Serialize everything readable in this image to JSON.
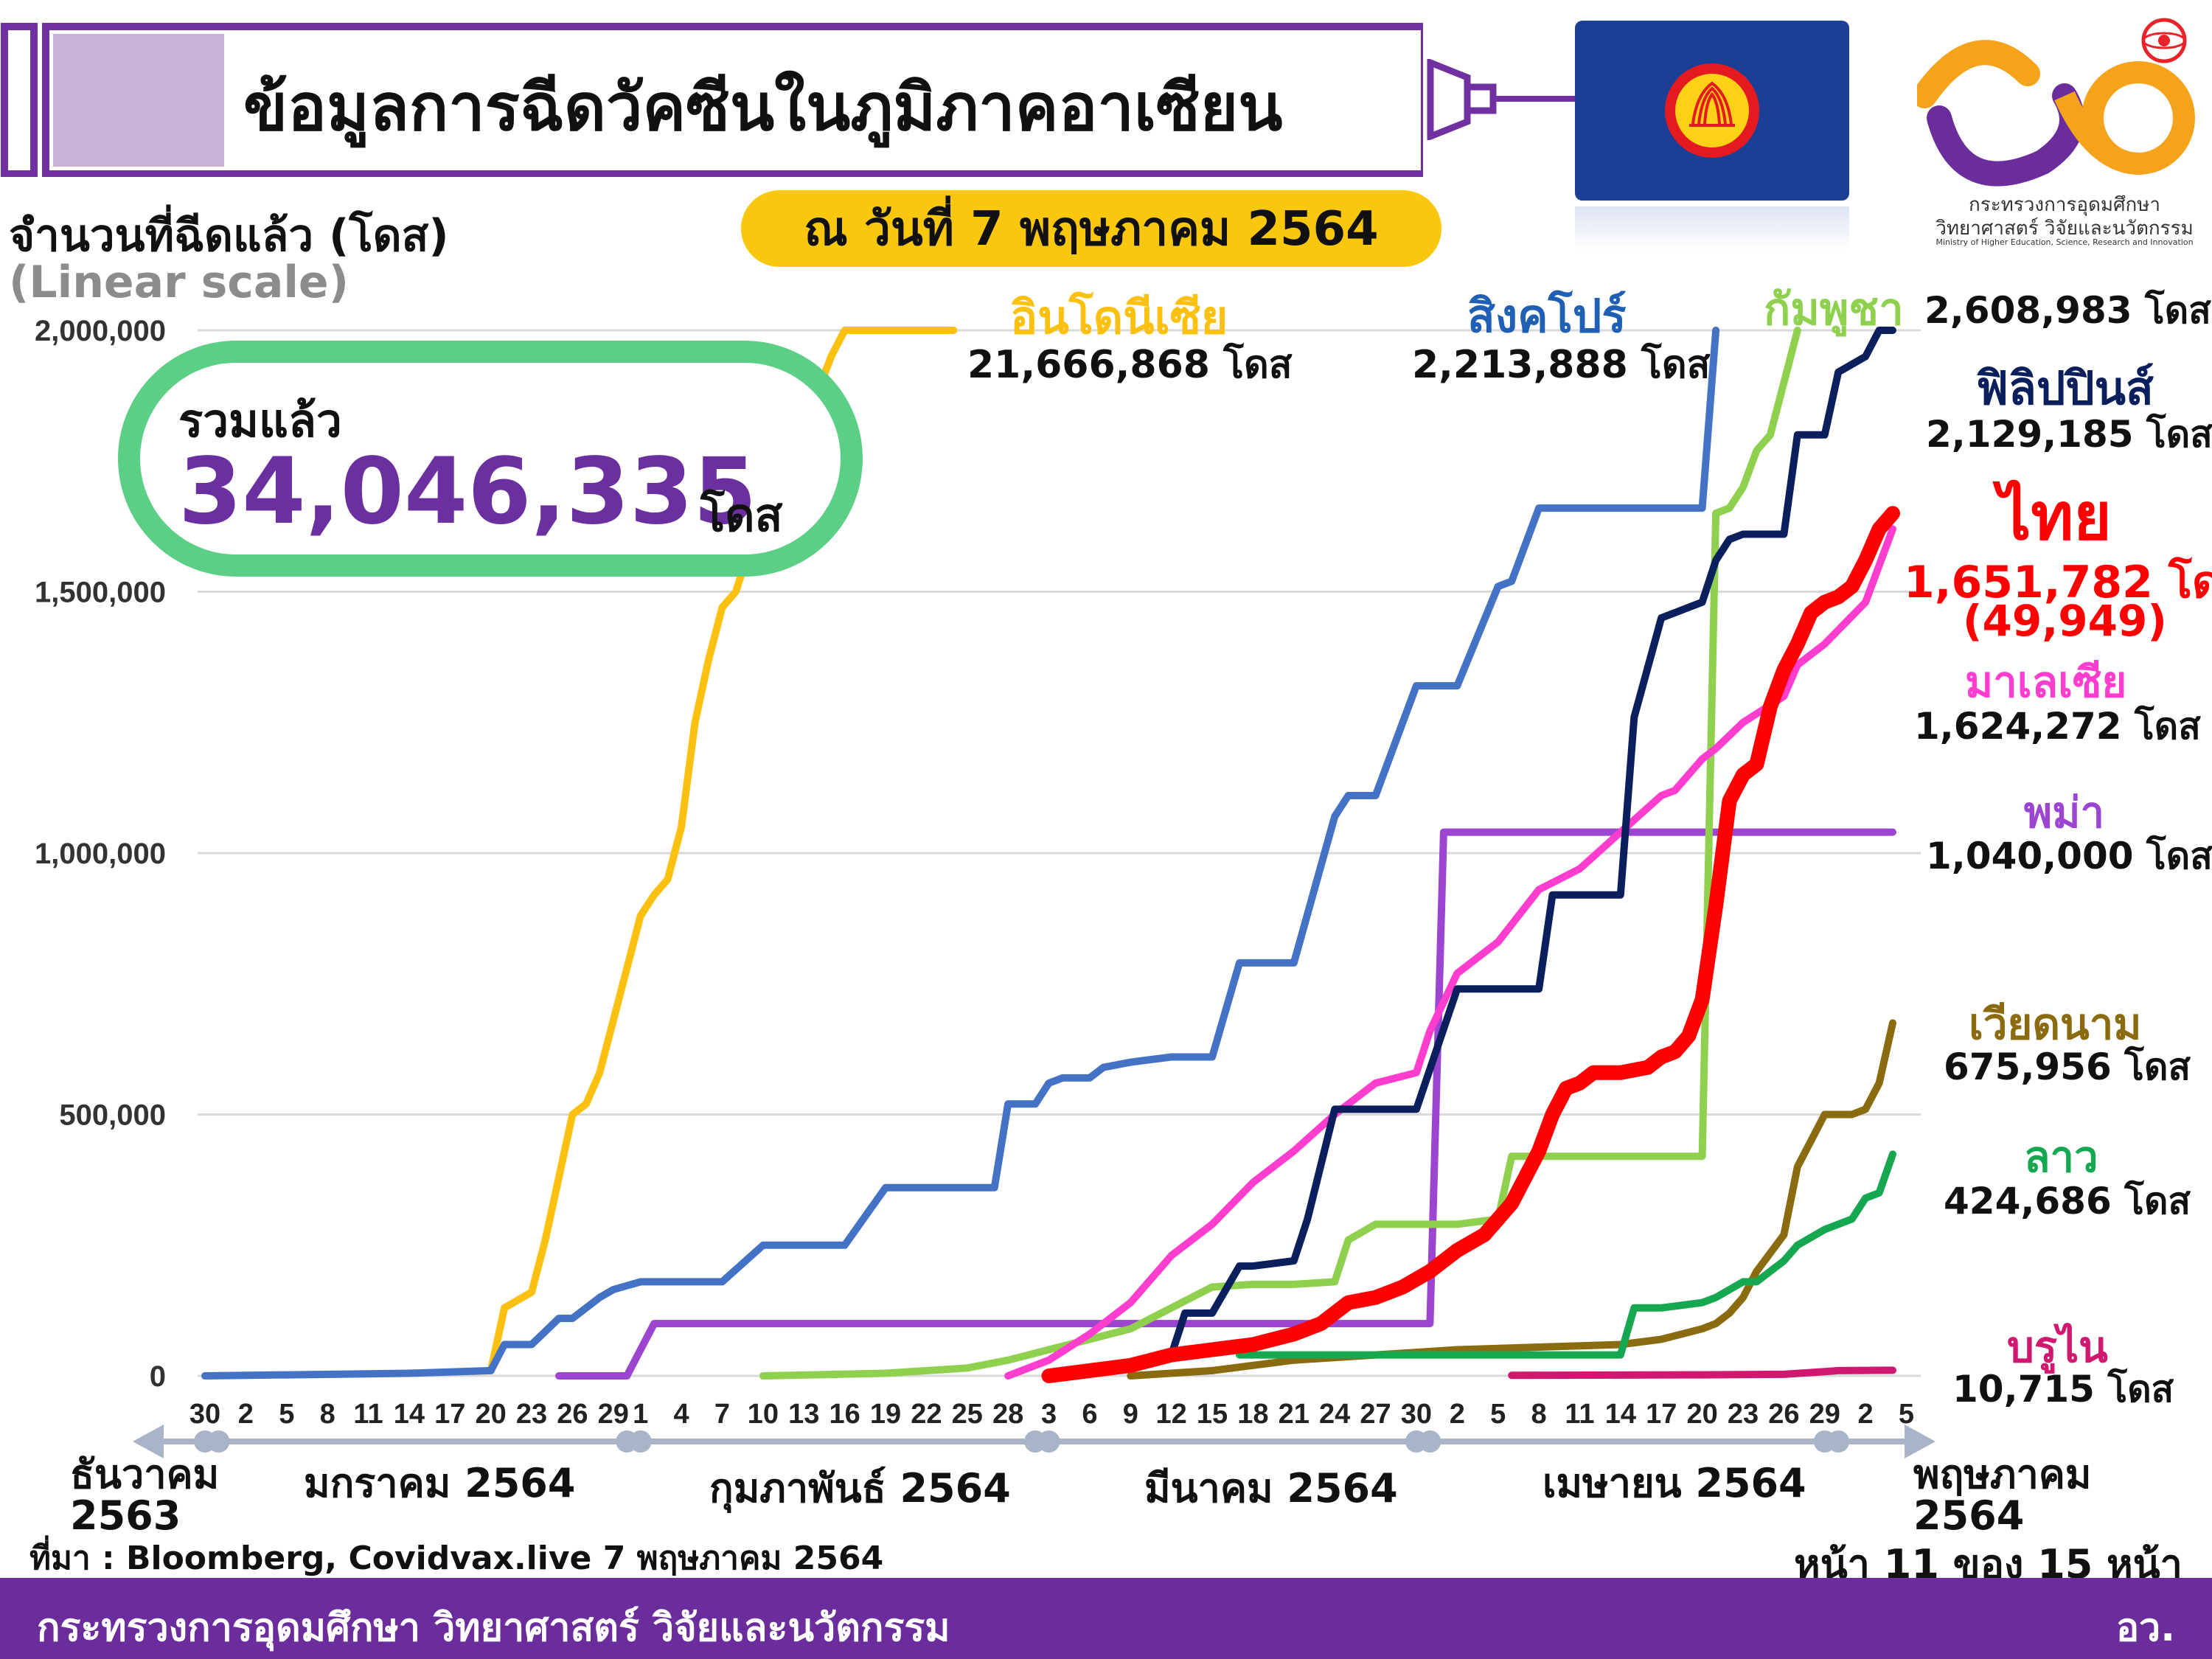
{
  "header": {
    "title": "ข้อมูลการฉีดวัคซีนในภูมิภาคอาเซียน",
    "date": "ณ วันที่ 7 พฤษภาคม 2564"
  },
  "total": {
    "label": "รวมแล้ว",
    "value": "34,046,335",
    "unit": "โดส"
  },
  "logo": {
    "ministry_th_1": "กระทรวงการอุดมศึกษา",
    "ministry_th_2": "วิทยาศาสตร์ วิจัยและนวัตกรรม",
    "ministry_en": "Ministry of Higher Education, Science, Research and Innovation"
  },
  "colors": {
    "indonesia": "#fcc010",
    "singapore": "#4472c4",
    "cambodia": "#8fd14f",
    "philippines": "#0b1f5c",
    "thailand": "#ff0000",
    "malaysia": "#ff3dcf",
    "myanmar": "#9b45d1",
    "vietnam": "#8b6b0f",
    "laos": "#16a850",
    "brunei": "#d01870",
    "grid": "#d9d9d9",
    "axis_arrow": "#aab4c8"
  },
  "source": "ที่มา : Bloomberg, Covidvax.live 7 พฤษภาคม 2564",
  "page_label": "หน้า 11 ของ 15 หน้า",
  "footer": {
    "left": "กระทรวงการอุดมศึกษา วิทยาศาสตร์ วิจัยและนวัตกรรม",
    "right": "อว."
  },
  "chart_data": {
    "type": "line",
    "title": "",
    "ylabel": "จำนวนที่ฉีดแล้ว (โดส)",
    "ylabel_sub": "(Linear scale)",
    "xlabel": "",
    "ylim": [
      0,
      2000000
    ],
    "y_ticks": [
      "0",
      "500,000",
      "1,000,000",
      "1,500,000",
      "2,000,000"
    ],
    "y_tick_values": [
      0,
      500000,
      1000000,
      1500000,
      2000000
    ],
    "grid": true,
    "x_ticks": [
      "30",
      "2",
      "5",
      "8",
      "11",
      "14",
      "17",
      "20",
      "23",
      "26",
      "29",
      "1",
      "4",
      "7",
      "10",
      "13",
      "16",
      "19",
      "22",
      "25",
      "28",
      "3",
      "6",
      "9",
      "12",
      "15",
      "18",
      "21",
      "24",
      "27",
      "30",
      "2",
      "5",
      "8",
      "11",
      "14",
      "17",
      "20",
      "23",
      "26",
      "29",
      "2",
      "5"
    ],
    "x_tick_day_index": [
      0,
      3,
      6,
      9,
      12,
      15,
      18,
      21,
      24,
      27,
      30,
      32,
      35,
      38,
      41,
      44,
      47,
      50,
      53,
      56,
      59,
      62,
      65,
      68,
      71,
      74,
      77,
      80,
      83,
      86,
      89,
      92,
      95,
      98,
      101,
      104,
      107,
      110,
      113,
      116,
      119,
      122,
      125
    ],
    "months": [
      "ธันวาคม\n2563",
      "มกราคม 2564",
      "กุมภาพันธ์ 2564",
      "มีนาคม 2564",
      "เมษายน 2564",
      "พฤษภาคม\n2564"
    ],
    "series": [
      {
        "name": "อินโดนีเซีย",
        "label": "21,666,868 โดส",
        "key": "indonesia",
        "x": [
          21,
          22,
          24,
          25,
          26,
          27,
          28,
          29,
          30,
          31,
          32,
          33,
          34,
          35,
          36,
          37,
          38,
          39,
          40,
          41,
          42,
          43,
          44,
          45,
          46,
          47,
          48,
          49,
          50,
          51,
          52,
          53,
          54,
          55
        ],
        "y": [
          10000,
          130000,
          160000,
          260000,
          380000,
          500000,
          520000,
          580000,
          680000,
          780000,
          880000,
          920000,
          950000,
          1050000,
          1250000,
          1370000,
          1470000,
          1500000,
          1580000,
          1650000,
          1720000,
          1780000,
          1820000,
          1880000,
          1950000,
          2000000,
          2000000,
          2000000,
          2000000,
          2000000,
          2000000,
          2000000,
          2000000,
          2000000
        ]
      },
      {
        "name": "สิงคโปร์",
        "label": "2,213,888 โดส",
        "key": "singapore",
        "x": [
          0,
          15,
          21,
          22,
          24,
          26,
          27,
          29,
          30,
          32,
          35,
          38,
          41,
          44,
          47,
          50,
          53,
          56,
          58,
          59,
          61,
          62,
          63,
          65,
          66,
          68,
          71,
          74,
          76,
          77,
          80,
          83,
          84,
          86,
          89,
          90,
          92,
          95,
          96,
          98,
          101,
          104,
          107,
          110,
          111
        ],
        "y": [
          0,
          5000,
          10000,
          60000,
          60000,
          110000,
          110000,
          150000,
          165000,
          180000,
          180000,
          180000,
          250000,
          250000,
          250000,
          360000,
          360000,
          360000,
          360000,
          520000,
          520000,
          560000,
          570000,
          570000,
          590000,
          600000,
          610000,
          610000,
          790000,
          790000,
          790000,
          1070000,
          1110000,
          1110000,
          1320000,
          1320000,
          1320000,
          1510000,
          1520000,
          1660000,
          1660000,
          1660000,
          1660000,
          1660000,
          2000000
        ]
      },
      {
        "name": "กัมพูชา",
        "label": "2,608,983 โดส",
        "key": "cambodia",
        "x": [
          41,
          50,
          56,
          59,
          62,
          65,
          68,
          71,
          74,
          77,
          80,
          83,
          84,
          86,
          89,
          92,
          95,
          96,
          98,
          101,
          104,
          107,
          108,
          110,
          111,
          112,
          113,
          114,
          115,
          116,
          117
        ],
        "y": [
          0,
          5000,
          15000,
          30000,
          50000,
          70000,
          90000,
          130000,
          170000,
          175000,
          175000,
          180000,
          260000,
          290000,
          290000,
          290000,
          300000,
          420000,
          420000,
          420000,
          420000,
          420000,
          420000,
          420000,
          1650000,
          1660000,
          1700000,
          1770000,
          1800000,
          1900000,
          2000000
        ]
      },
      {
        "name": "ฟิลิปปินส์",
        "label": "2,129,185 โดส",
        "key": "philippines",
        "x": [
          62,
          65,
          68,
          71,
          72,
          74,
          76,
          77,
          80,
          81,
          83,
          86,
          89,
          92,
          95,
          98,
          99,
          101,
          104,
          105,
          107,
          108,
          110,
          111,
          112,
          113,
          114,
          116,
          117,
          119,
          120,
          122,
          123,
          124
        ],
        "y": [
          0,
          5000,
          20000,
          40000,
          120000,
          120000,
          210000,
          210000,
          220000,
          300000,
          510000,
          510000,
          510000,
          740000,
          740000,
          740000,
          920000,
          920000,
          920000,
          1260000,
          1450000,
          1460000,
          1480000,
          1560000,
          1600000,
          1610000,
          1610000,
          1610000,
          1800000,
          1800000,
          1920000,
          1950000,
          2000000,
          2000000
        ]
      },
      {
        "name": "ไทย",
        "label": "1,651,782 โดส",
        "extra": "(49,949)",
        "key": "thailand",
        "x": [
          62,
          65,
          68,
          71,
          74,
          77,
          80,
          82,
          84,
          86,
          88,
          90,
          92,
          94,
          96,
          98,
          99,
          100,
          101,
          102,
          104,
          106,
          107,
          108,
          109,
          110,
          111,
          112,
          113,
          114,
          115,
          116,
          117,
          118,
          119,
          120,
          121,
          122,
          123,
          124
        ],
        "y": [
          0,
          10000,
          20000,
          40000,
          50000,
          60000,
          80000,
          100000,
          140000,
          150000,
          170000,
          200000,
          240000,
          270000,
          330000,
          430000,
          500000,
          550000,
          560000,
          580000,
          580000,
          590000,
          610000,
          620000,
          650000,
          720000,
          900000,
          1100000,
          1150000,
          1170000,
          1280000,
          1350000,
          1400000,
          1460000,
          1480000,
          1490000,
          1510000,
          1560000,
          1620000,
          1650000
        ]
      },
      {
        "name": "มาเลเซีย",
        "label": "1,624,272 โดส",
        "key": "malaysia",
        "x": [
          59,
          62,
          65,
          68,
          71,
          74,
          77,
          80,
          83,
          84,
          86,
          89,
          90,
          92,
          95,
          98,
          101,
          104,
          107,
          108,
          110,
          111,
          113,
          116,
          117,
          119,
          122,
          124
        ],
        "y": [
          0,
          30000,
          80000,
          140000,
          230000,
          290000,
          370000,
          430000,
          500000,
          520000,
          560000,
          580000,
          660000,
          770000,
          830000,
          930000,
          970000,
          1040000,
          1110000,
          1120000,
          1180000,
          1200000,
          1250000,
          1300000,
          1360000,
          1400000,
          1480000,
          1620000
        ]
      },
      {
        "name": "พม่า",
        "label": "1,040,000 โดส",
        "key": "myanmar",
        "x": [
          26,
          31,
          32,
          33,
          35,
          41,
          50,
          59,
          71,
          80,
          89,
          90,
          91,
          92,
          95,
          104,
          110,
          116,
          122,
          124
        ],
        "y": [
          0,
          0,
          50000,
          100000,
          100000,
          100000,
          100000,
          100000,
          100000,
          100000,
          100000,
          100000,
          1040000,
          1040000,
          1040000,
          1040000,
          1040000,
          1040000,
          1040000,
          1040000
        ]
      },
      {
        "name": "เวียดนาม",
        "label": "675,956 โดส",
        "key": "vietnam",
        "x": [
          68,
          74,
          80,
          86,
          92,
          98,
          104,
          107,
          110,
          111,
          112,
          113,
          114,
          116,
          117,
          119,
          121,
          122,
          123,
          124
        ],
        "y": [
          0,
          10000,
          30000,
          40000,
          50000,
          55000,
          60000,
          70000,
          90000,
          100000,
          120000,
          150000,
          200000,
          270000,
          400000,
          500000,
          500000,
          510000,
          560000,
          675000
        ]
      },
      {
        "name": "ลาว",
        "label": "424,686 โดส",
        "key": "laos",
        "x": [
          76,
          80,
          86,
          92,
          98,
          101,
          104,
          105,
          107,
          110,
          111,
          113,
          114,
          116,
          117,
          119,
          120,
          121,
          122,
          123,
          124
        ],
        "y": [
          40000,
          40000,
          40000,
          40000,
          40000,
          40000,
          40000,
          130000,
          130000,
          140000,
          150000,
          180000,
          180000,
          220000,
          250000,
          280000,
          290000,
          300000,
          340000,
          350000,
          424000
        ]
      },
      {
        "name": "บรูไน",
        "label": "10,715 โดส",
        "key": "brunei",
        "x": [
          96,
          104,
          110,
          116,
          119,
          120,
          122,
          124
        ],
        "y": [
          1000,
          1500,
          2000,
          3000,
          8000,
          10000,
          10500,
          10715
        ]
      }
    ]
  }
}
